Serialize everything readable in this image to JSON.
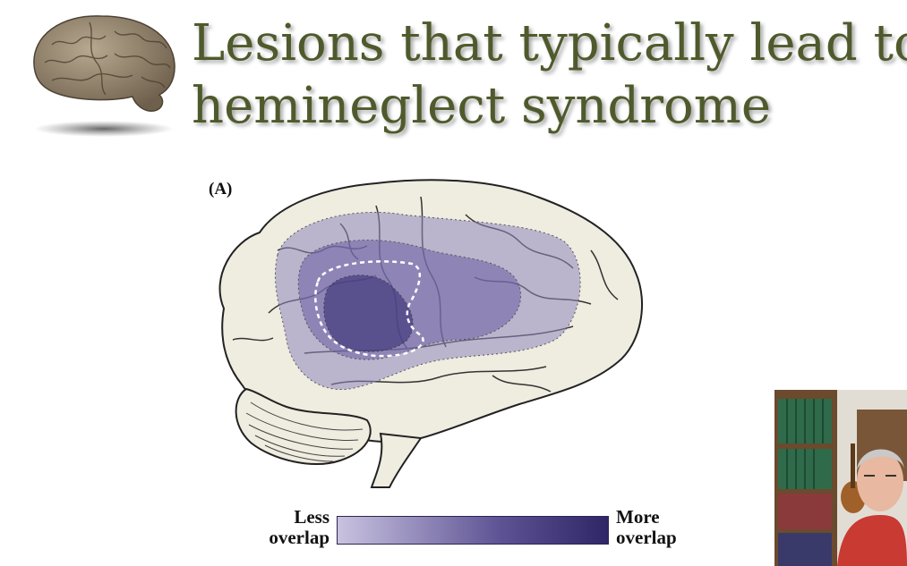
{
  "slide": {
    "title_line1": "Lesions that typically lead to",
    "title_line2": "hemineglect syndrome",
    "title_color": "#4f5a2c"
  },
  "figure": {
    "panel_label": "(A)",
    "region_colors": {
      "outer": "#8f86be",
      "middle": "#6a5fa4",
      "inner": "#3d3479"
    }
  },
  "legend": {
    "less_line1": "Less",
    "less_line2": "overlap",
    "more_line1": "More",
    "more_line2": "overlap",
    "gradient_start": "#c9c3e0",
    "gradient_end": "#2e2666"
  },
  "icons": {
    "logo": "brain-icon",
    "presenter": "webcam-presenter"
  }
}
